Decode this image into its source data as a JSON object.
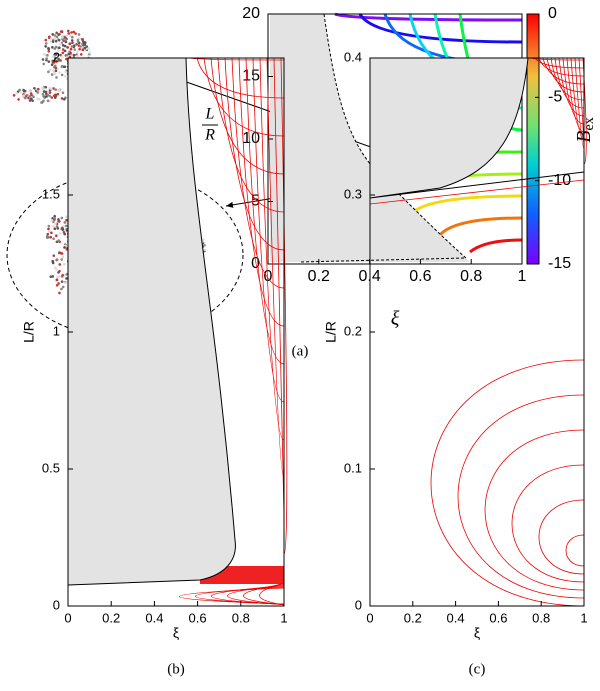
{
  "chart_data": [
    {
      "type": "contour",
      "caption": "(a)",
      "xlabel": "ξ",
      "ylabel": [
        "L",
        "R"
      ],
      "xlim": [
        0,
        1
      ],
      "ylim": [
        0,
        20
      ],
      "xticks": [
        0,
        0.2,
        0.4,
        0.6,
        0.8,
        1
      ],
      "yticks": [
        0,
        5,
        10,
        15,
        20
      ],
      "clim": [
        -15,
        0
      ],
      "cticks": [
        0,
        -5,
        -10,
        -15
      ],
      "clabel": "B",
      "clabel_sub": "ex"
    },
    {
      "type": "contour",
      "caption": "(b)",
      "xlabel": "ξ",
      "ylabel": "L/R",
      "xlim": [
        0,
        1
      ],
      "ylim": [
        0,
        2
      ],
      "xticks": [
        0,
        0.2,
        0.4,
        0.6,
        0.8,
        1
      ],
      "yticks": [
        0,
        0.5,
        1,
        1.5,
        2
      ]
    },
    {
      "type": "contour",
      "caption": "(c)",
      "xlabel": "ξ",
      "ylabel": "L/R",
      "xlim": [
        0,
        1
      ],
      "ylim": [
        0,
        0.4
      ],
      "xticks": [
        0,
        0.2,
        0.4,
        0.6,
        0.8,
        1
      ],
      "yticks": [
        0,
        0.1,
        0.2,
        0.3,
        0.4
      ]
    }
  ]
}
